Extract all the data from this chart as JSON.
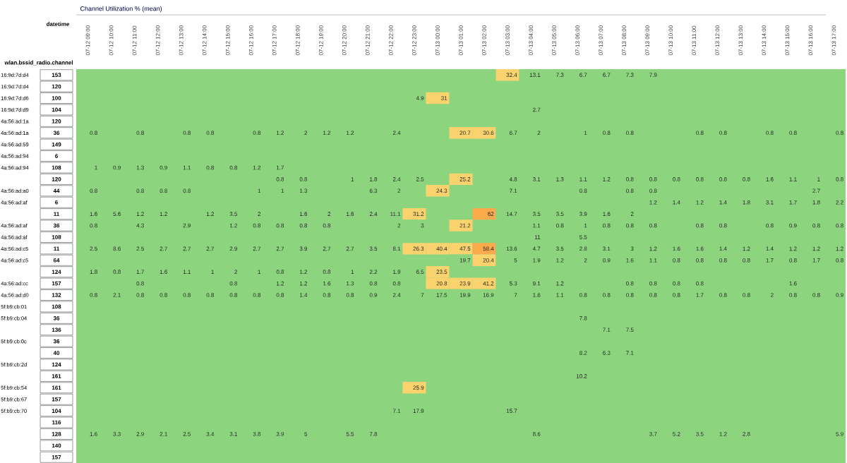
{
  "chart_data": {
    "type": "heatmap",
    "data_labels": true,
    "title": "Channel Utilization % (mean)",
    "xlabel": "datetime",
    "ylabel": "wlan.bssid_radio.channel",
    "categories": [
      "07-12 09:00",
      "07-12 10:00",
      "07-12 11:00",
      "07-12 12:00",
      "07-12 13:00",
      "07-12 14:00",
      "07-12 15:00",
      "07-12 16:00",
      "07-12 17:00",
      "07-12 18:00",
      "07-12 19:00",
      "07-12 20:00",
      "07-12 21:00",
      "07-12 22:00",
      "07-12 23:00",
      "07-13 00:00",
      "07-13 01:00",
      "07-13 02:00",
      "07-13 03:00",
      "07-13 04:00",
      "07-13 05:00",
      "07-13 06:00",
      "07-13 07:00",
      "07-13 08:00",
      "07-13 09:00",
      "07-13 10:00",
      "07-13 11:00",
      "07-13 12:00",
      "07-13 13:00",
      "07-13 14:00",
      "07-13 15:00",
      "07-13 16:00",
      "07-13 17:00"
    ],
    "y_categories": [
      "153",
      "120",
      "100",
      "104",
      "120",
      "36",
      "149",
      "6",
      "108",
      "120",
      "44",
      "6",
      "11",
      "36",
      "108",
      "11",
      "64",
      "124",
      "157",
      "132",
      "108",
      "36",
      "136",
      "36",
      "40",
      "124",
      "161",
      "161",
      "157",
      "104",
      "116",
      "128",
      "140",
      "157"
    ],
    "y2_categories": [
      "16:9d:7d:d4",
      "16:9d:7d:d4",
      "16:9d:7d:d6",
      "16:9d:7d:d9",
      "4a:56:ad:1a",
      "4a:56:ad:1a",
      "4a:56:ad:59",
      "4a:56:ad:94",
      "4a:56:ad:94",
      null,
      "4a:56:ad:a0",
      "4a:56:ad:af",
      null,
      "4a:56:ad:af",
      "4a:56:ad:af",
      "4a:56:ad:c5",
      "4a:56:ad:c5",
      null,
      "4a:56:ad:cc",
      "4a:56:ad:d0",
      "5f:b9:cb:01",
      "5f:b9:cb:04",
      null,
      "5f:b9:cb:0c",
      null,
      "5f:b9:cb:2d",
      null,
      "5f:b9:cb:54",
      "5f:b9:cb:67",
      "5f:b9:cb:70",
      null,
      null,
      null,
      null
    ],
    "cells": [
      [
        null,
        null,
        null,
        null,
        null,
        null,
        null,
        null,
        null,
        null,
        null,
        null,
        null,
        null,
        null,
        null,
        null,
        null,
        32.4,
        13.1,
        7.3,
        6.7,
        6.7,
        7.3,
        7.9,
        null,
        null,
        null,
        null,
        null,
        null,
        null,
        null
      ],
      [
        null,
        null,
        null,
        null,
        null,
        null,
        null,
        null,
        null,
        null,
        null,
        null,
        null,
        null,
        null,
        null,
        null,
        null,
        null,
        null,
        null,
        null,
        null,
        null,
        null,
        null,
        null,
        null,
        null,
        null,
        null,
        null,
        null
      ],
      [
        null,
        null,
        null,
        null,
        null,
        null,
        null,
        null,
        null,
        null,
        null,
        null,
        null,
        null,
        4.9,
        31,
        null,
        null,
        null,
        null,
        null,
        null,
        null,
        null,
        null,
        null,
        null,
        null,
        null,
        null,
        null,
        null,
        null
      ],
      [
        null,
        null,
        null,
        null,
        null,
        null,
        null,
        null,
        null,
        null,
        null,
        null,
        null,
        null,
        null,
        null,
        null,
        null,
        null,
        2.7,
        null,
        null,
        null,
        null,
        null,
        null,
        null,
        null,
        null,
        null,
        null,
        null,
        null
      ],
      [
        null,
        null,
        null,
        null,
        null,
        null,
        null,
        null,
        null,
        null,
        null,
        null,
        null,
        null,
        null,
        null,
        null,
        null,
        null,
        null,
        null,
        null,
        null,
        null,
        null,
        null,
        null,
        null,
        null,
        null,
        null,
        null,
        null
      ],
      [
        0.8,
        null,
        0.8,
        null,
        0.8,
        0.8,
        null,
        0.8,
        1.2,
        2,
        1.2,
        1.2,
        null,
        2.4,
        null,
        null,
        20.7,
        30.6,
        6.7,
        2,
        null,
        1,
        0.8,
        0.8,
        null,
        null,
        0.8,
        0.8,
        null,
        0.8,
        0.8,
        null,
        0.8
      ],
      [
        null,
        null,
        null,
        null,
        null,
        null,
        null,
        null,
        null,
        null,
        null,
        null,
        null,
        null,
        null,
        null,
        null,
        null,
        null,
        null,
        null,
        null,
        null,
        null,
        null,
        null,
        null,
        null,
        null,
        null,
        null,
        null,
        null
      ],
      [
        null,
        null,
        null,
        null,
        null,
        null,
        null,
        null,
        null,
        null,
        null,
        null,
        null,
        null,
        null,
        null,
        null,
        null,
        null,
        null,
        null,
        null,
        null,
        null,
        null,
        null,
        null,
        null,
        null,
        null,
        null,
        null,
        null
      ],
      [
        1,
        0.9,
        1.3,
        0.9,
        1.1,
        0.8,
        0.8,
        1.2,
        1.7,
        null,
        null,
        null,
        null,
        null,
        null,
        null,
        null,
        null,
        null,
        null,
        null,
        null,
        null,
        null,
        null,
        null,
        null,
        null,
        null,
        null,
        null,
        null,
        null
      ],
      [
        null,
        null,
        null,
        null,
        null,
        null,
        null,
        null,
        0.8,
        0.8,
        null,
        1,
        1.8,
        2.4,
        2.5,
        null,
        25.2,
        null,
        4.8,
        3.1,
        1.3,
        1.1,
        1.2,
        0.8,
        0.8,
        0.8,
        0.8,
        0.8,
        0.8,
        1.6,
        1.1,
        1,
        0.8
      ],
      [
        0.8,
        null,
        0.8,
        0.8,
        0.8,
        null,
        null,
        1,
        1,
        1.3,
        null,
        null,
        6.3,
        2,
        null,
        24.3,
        null,
        null,
        7.1,
        null,
        null,
        0.8,
        null,
        0.8,
        0.8,
        null,
        null,
        null,
        null,
        null,
        null,
        2.7,
        null
      ],
      [
        null,
        null,
        null,
        null,
        null,
        null,
        null,
        null,
        null,
        null,
        null,
        null,
        null,
        null,
        null,
        null,
        null,
        null,
        null,
        null,
        null,
        null,
        null,
        null,
        1.2,
        1.4,
        1.2,
        1.4,
        1.8,
        3.1,
        1.7,
        1.8,
        2.2
      ],
      [
        1.6,
        5.6,
        1.2,
        1.2,
        null,
        1.2,
        3.5,
        2,
        null,
        1.6,
        2,
        1.6,
        2.4,
        11.1,
        31.2,
        null,
        null,
        62,
        14.7,
        3.5,
        3.5,
        3.9,
        1.6,
        2,
        null,
        null,
        null,
        null,
        null,
        null,
        null,
        null,
        null
      ],
      [
        0.8,
        null,
        4.3,
        null,
        2.9,
        null,
        1.2,
        0.8,
        0.8,
        0.8,
        0.8,
        null,
        null,
        2,
        3,
        null,
        21.2,
        null,
        null,
        1.1,
        0.8,
        1,
        0.8,
        0.8,
        0.8,
        null,
        0.8,
        0.8,
        null,
        0.8,
        0.9,
        0.8,
        0.8
      ],
      [
        null,
        null,
        null,
        null,
        null,
        null,
        null,
        null,
        null,
        null,
        null,
        null,
        null,
        null,
        null,
        null,
        null,
        null,
        null,
        11,
        null,
        5.5,
        null,
        null,
        null,
        null,
        null,
        null,
        null,
        null,
        null,
        null,
        null
      ],
      [
        2.5,
        8.6,
        2.5,
        2.7,
        2.7,
        2.7,
        2.9,
        2.7,
        2.7,
        3.9,
        2.7,
        2.7,
        3.5,
        8.1,
        26.3,
        40.4,
        47.5,
        58.4,
        13.6,
        4.7,
        3.5,
        2.8,
        3.1,
        3,
        1.2,
        1.6,
        1.6,
        1.4,
        1.2,
        1.4,
        1.2,
        1.2,
        1.2
      ],
      [
        null,
        null,
        null,
        null,
        null,
        null,
        null,
        null,
        null,
        null,
        null,
        null,
        null,
        null,
        null,
        null,
        19.7,
        20.4,
        5,
        1.9,
        1.2,
        2,
        0.9,
        1.6,
        1.1,
        0.8,
        0.8,
        0.8,
        0.8,
        1.7,
        0.8,
        1.7,
        0.8
      ],
      [
        1.8,
        0.8,
        1.7,
        1.6,
        1.1,
        1,
        2,
        1,
        0.8,
        1.2,
        0.8,
        1,
        2.2,
        1.9,
        6.5,
        23.5,
        null,
        null,
        null,
        null,
        null,
        null,
        null,
        null,
        null,
        null,
        null,
        null,
        null,
        null,
        null,
        null,
        null
      ],
      [
        null,
        null,
        0.8,
        null,
        null,
        null,
        0.8,
        null,
        1.2,
        1.2,
        1.6,
        1.3,
        0.8,
        0.8,
        null,
        20.8,
        23.9,
        41.2,
        5.3,
        9.1,
        1.2,
        null,
        null,
        0.8,
        0.8,
        0.8,
        0.8,
        null,
        null,
        null,
        1.6,
        null,
        null
      ],
      [
        0.8,
        2.1,
        0.8,
        0.8,
        0.8,
        0.8,
        0.8,
        0.8,
        0.8,
        1.4,
        0.8,
        0.8,
        0.9,
        2.4,
        7,
        17.5,
        19.9,
        16.9,
        7,
        1.6,
        1.1,
        0.8,
        0.8,
        0.8,
        0.8,
        0.8,
        1.7,
        0.8,
        0.8,
        2,
        0.8,
        0.8,
        0.9
      ],
      [
        null,
        null,
        null,
        null,
        null,
        null,
        null,
        null,
        null,
        null,
        null,
        null,
        null,
        null,
        null,
        null,
        null,
        null,
        null,
        null,
        null,
        null,
        null,
        null,
        null,
        null,
        null,
        null,
        null,
        null,
        null,
        null,
        null
      ],
      [
        null,
        null,
        null,
        null,
        null,
        null,
        null,
        null,
        null,
        null,
        null,
        null,
        null,
        null,
        null,
        null,
        null,
        null,
        null,
        null,
        null,
        7.8,
        null,
        null,
        null,
        null,
        null,
        null,
        null,
        null,
        null,
        null,
        null
      ],
      [
        null,
        null,
        null,
        null,
        null,
        null,
        null,
        null,
        null,
        null,
        null,
        null,
        null,
        null,
        null,
        null,
        null,
        null,
        null,
        null,
        null,
        null,
        7.1,
        7.5,
        null,
        null,
        null,
        null,
        null,
        null,
        null,
        null,
        null
      ],
      [
        null,
        null,
        null,
        null,
        null,
        null,
        null,
        null,
        null,
        null,
        null,
        null,
        null,
        null,
        null,
        null,
        null,
        null,
        null,
        null,
        null,
        null,
        null,
        null,
        null,
        null,
        null,
        null,
        null,
        null,
        null,
        null,
        null
      ],
      [
        null,
        null,
        null,
        null,
        null,
        null,
        null,
        null,
        null,
        null,
        null,
        null,
        null,
        null,
        null,
        null,
        null,
        null,
        null,
        null,
        null,
        8.2,
        6.3,
        7.1,
        null,
        null,
        null,
        null,
        null,
        null,
        null,
        null,
        null
      ],
      [
        null,
        null,
        null,
        null,
        null,
        null,
        null,
        null,
        null,
        null,
        null,
        null,
        null,
        null,
        null,
        null,
        null,
        null,
        null,
        null,
        null,
        null,
        null,
        null,
        null,
        null,
        null,
        null,
        null,
        null,
        null,
        null,
        null
      ],
      [
        null,
        null,
        null,
        null,
        null,
        null,
        null,
        null,
        null,
        null,
        null,
        null,
        null,
        null,
        null,
        null,
        null,
        null,
        null,
        null,
        null,
        10.2,
        null,
        null,
        null,
        null,
        null,
        null,
        null,
        null,
        null,
        null,
        null
      ],
      [
        null,
        null,
        null,
        null,
        null,
        null,
        null,
        null,
        null,
        null,
        null,
        null,
        null,
        null,
        25.9,
        null,
        null,
        null,
        null,
        null,
        null,
        null,
        null,
        null,
        null,
        null,
        null,
        null,
        null,
        null,
        null,
        null,
        null
      ],
      [
        null,
        null,
        null,
        null,
        null,
        null,
        null,
        null,
        null,
        null,
        null,
        null,
        null,
        null,
        null,
        null,
        null,
        null,
        null,
        null,
        null,
        null,
        null,
        null,
        null,
        null,
        null,
        null,
        null,
        null,
        null,
        null,
        null
      ],
      [
        null,
        null,
        null,
        null,
        null,
        null,
        null,
        null,
        null,
        null,
        null,
        null,
        null,
        7.1,
        17.9,
        null,
        null,
        null,
        15.7,
        null,
        null,
        null,
        null,
        null,
        null,
        null,
        null,
        null,
        null,
        null,
        null,
        null,
        null
      ],
      [
        null,
        null,
        null,
        null,
        null,
        null,
        null,
        null,
        null,
        null,
        null,
        null,
        null,
        null,
        null,
        null,
        null,
        null,
        null,
        null,
        null,
        null,
        null,
        null,
        null,
        null,
        null,
        null,
        null,
        null,
        null,
        null,
        null
      ],
      [
        1.6,
        3.3,
        2.9,
        2.1,
        2.5,
        3.4,
        3.1,
        3.8,
        3.9,
        5,
        null,
        5.5,
        7.8,
        null,
        null,
        null,
        null,
        null,
        null,
        8.6,
        null,
        null,
        null,
        null,
        3.7,
        5.2,
        3.5,
        1.2,
        2.8,
        null,
        null,
        null,
        5.9
      ],
      [
        null,
        null,
        null,
        null,
        null,
        null,
        null,
        null,
        null,
        null,
        null,
        null,
        null,
        null,
        null,
        null,
        null,
        null,
        null,
        null,
        null,
        null,
        null,
        null,
        null,
        null,
        null,
        null,
        null,
        null,
        null,
        null,
        null
      ],
      [
        null,
        null,
        null,
        null,
        null,
        null,
        null,
        null,
        null,
        null,
        null,
        null,
        null,
        null,
        null,
        null,
        null,
        null,
        null,
        null,
        null,
        null,
        null,
        null,
        null,
        null,
        null,
        null,
        null,
        null,
        null,
        null,
        null
      ]
    ]
  }
}
